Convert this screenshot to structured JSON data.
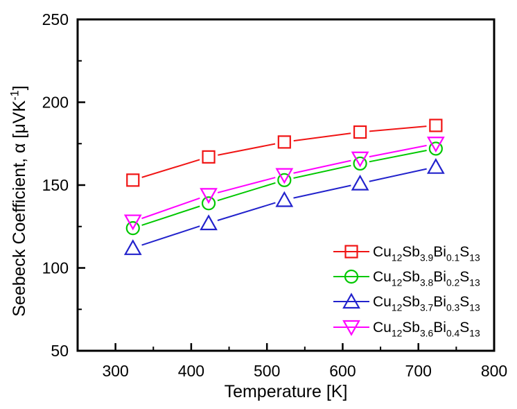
{
  "figure": {
    "background": "#ffffff",
    "axis_color": "#000000"
  },
  "chart_data": {
    "type": "line",
    "title": "",
    "xlabel": "Temperature [K]",
    "ylabel_plain": "Seebeck Coefficient, α [μVK⁻¹]",
    "ylabel_parts": [
      {
        "t": "Seebeck Coefficient, "
      },
      {
        "t": "α"
      },
      {
        "t": " [μVK"
      },
      {
        "t": "-1",
        "sup": true
      },
      {
        "t": "]"
      }
    ],
    "xlim": [
      250,
      800
    ],
    "ylim": [
      50,
      250
    ],
    "x_major_ticks": [
      300,
      400,
      500,
      600,
      700,
      800
    ],
    "x_minor_ticks": [
      350,
      450,
      550,
      650,
      750
    ],
    "y_major_ticks": [
      50,
      100,
      150,
      200,
      250
    ],
    "y_minor_ticks": [
      75,
      125,
      175,
      225
    ],
    "grid": false,
    "legend_position": "bottom-right",
    "x": [
      323,
      423,
      523,
      623,
      723
    ],
    "series": [
      {
        "label_plain": "Cu12Sb3.9Bi0.1S13",
        "label_parts": [
          {
            "t": "Cu"
          },
          {
            "t": "12",
            "sub": true
          },
          {
            "t": "Sb"
          },
          {
            "t": "3.9",
            "sub": true
          },
          {
            "t": "Bi"
          },
          {
            "t": "0.1",
            "sub": true
          },
          {
            "t": "S"
          },
          {
            "t": "13",
            "sub": true
          }
        ],
        "marker": "square",
        "color": "#f01414",
        "values": [
          153,
          167,
          176,
          182,
          186
        ]
      },
      {
        "label_plain": "Cu12Sb3.8Bi0.2S13",
        "label_parts": [
          {
            "t": "Cu"
          },
          {
            "t": "12",
            "sub": true
          },
          {
            "t": "Sb"
          },
          {
            "t": "3.8",
            "sub": true
          },
          {
            "t": "Bi"
          },
          {
            "t": "0.2",
            "sub": true
          },
          {
            "t": "S"
          },
          {
            "t": "13",
            "sub": true
          }
        ],
        "marker": "circle",
        "color": "#00c800",
        "values": [
          124,
          139,
          153,
          163,
          172
        ]
      },
      {
        "label_plain": "Cu12Sb3.7Bi0.3S13",
        "label_parts": [
          {
            "t": "Cu"
          },
          {
            "t": "12",
            "sub": true
          },
          {
            "t": "Sb"
          },
          {
            "t": "3.7",
            "sub": true
          },
          {
            "t": "Bi"
          },
          {
            "t": "0.3",
            "sub": true
          },
          {
            "t": "S"
          },
          {
            "t": "13",
            "sub": true
          }
        ],
        "marker": "triangle-up",
        "color": "#2222cc",
        "values": [
          112,
          127,
          141,
          151,
          161
        ]
      },
      {
        "label_plain": "Cu12Sb3.6Bi0.4S13",
        "label_parts": [
          {
            "t": "Cu"
          },
          {
            "t": "12",
            "sub": true
          },
          {
            "t": "Sb"
          },
          {
            "t": "3.6",
            "sub": true
          },
          {
            "t": "Bi"
          },
          {
            "t": "0.4",
            "sub": true
          },
          {
            "t": "S"
          },
          {
            "t": "13",
            "sub": true
          }
        ],
        "marker": "triangle-down",
        "color": "#ff00ff",
        "values": [
          128,
          144,
          156,
          166,
          175
        ]
      }
    ]
  }
}
